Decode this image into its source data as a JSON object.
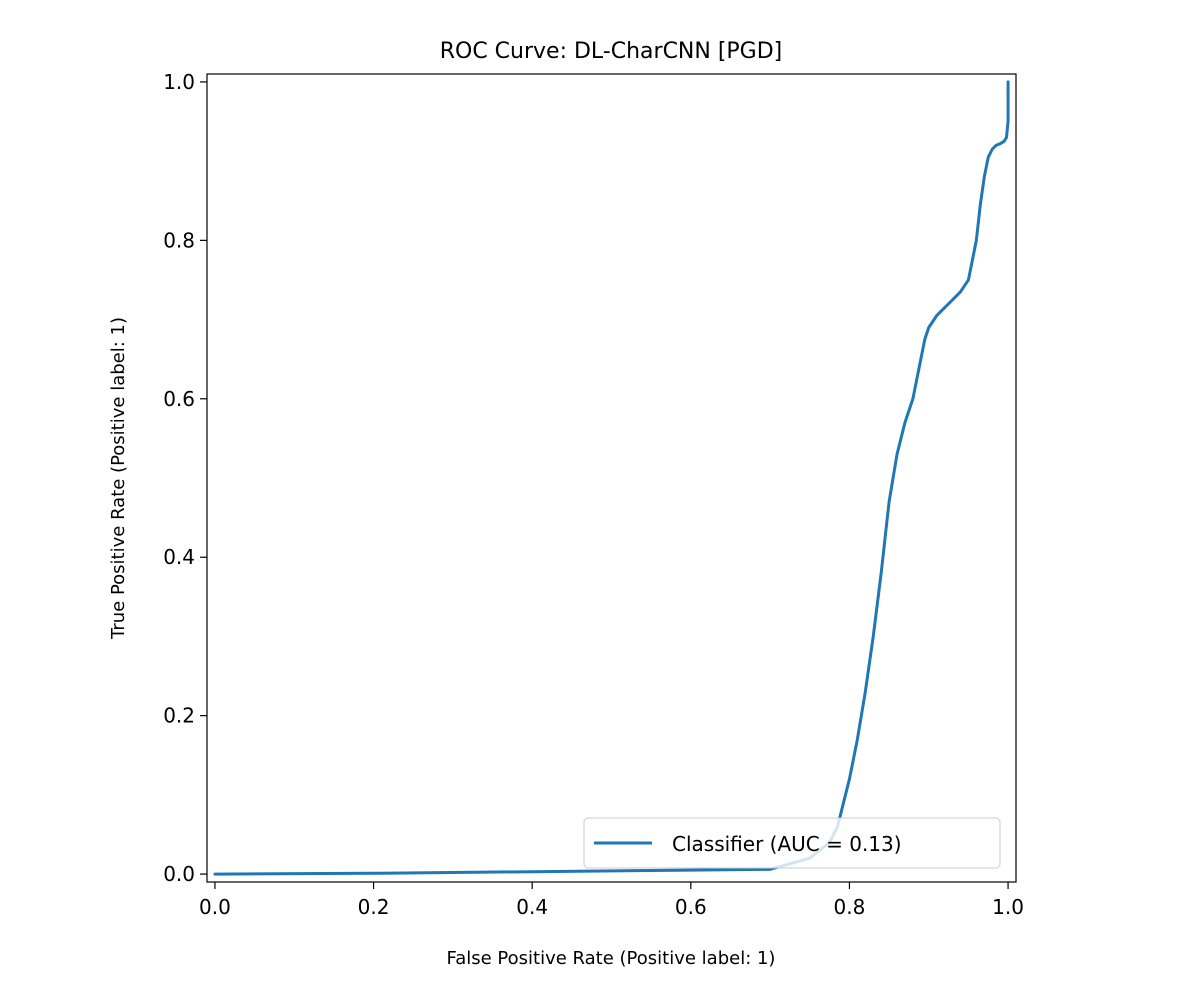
{
  "chart_data": {
    "type": "line",
    "title": "ROC Curve: DL-CharCNN [PGD]",
    "xlabel": "False Positive Rate (Positive label: 1)",
    "ylabel": "True Positive Rate (Positive label: 1)",
    "xlim": [
      -0.01,
      1.01
    ],
    "ylim": [
      -0.01,
      1.01
    ],
    "xticks": [
      0.0,
      0.2,
      0.4,
      0.6,
      0.8,
      1.0
    ],
    "xtick_labels": [
      "0.0",
      "0.2",
      "0.4",
      "0.6",
      "0.8",
      "1.0"
    ],
    "yticks": [
      0.0,
      0.2,
      0.4,
      0.6,
      0.8,
      1.0
    ],
    "ytick_labels": [
      "0.0",
      "0.2",
      "0.4",
      "0.6",
      "0.8",
      "1.0"
    ],
    "grid": false,
    "legend_position": "lower right",
    "series": [
      {
        "name": "Classifier (AUC = 0.13)",
        "color": "#1f77b4",
        "x": [
          0.0,
          0.2,
          0.4,
          0.6,
          0.7,
          0.75,
          0.775,
          0.785,
          0.79,
          0.8,
          0.81,
          0.82,
          0.83,
          0.84,
          0.85,
          0.86,
          0.865,
          0.87,
          0.88,
          0.89,
          0.895,
          0.9,
          0.91,
          0.92,
          0.93,
          0.94,
          0.95,
          0.955,
          0.96,
          0.965,
          0.97,
          0.975,
          0.98,
          0.985,
          0.99,
          0.995,
          0.998,
          1.0,
          1.0
        ],
        "y": [
          0.0,
          0.001,
          0.003,
          0.005,
          0.006,
          0.02,
          0.04,
          0.06,
          0.08,
          0.12,
          0.17,
          0.23,
          0.3,
          0.38,
          0.47,
          0.53,
          0.55,
          0.57,
          0.6,
          0.65,
          0.675,
          0.69,
          0.705,
          0.715,
          0.725,
          0.735,
          0.75,
          0.775,
          0.8,
          0.845,
          0.88,
          0.905,
          0.915,
          0.92,
          0.922,
          0.925,
          0.93,
          0.95,
          1.0
        ]
      }
    ]
  }
}
